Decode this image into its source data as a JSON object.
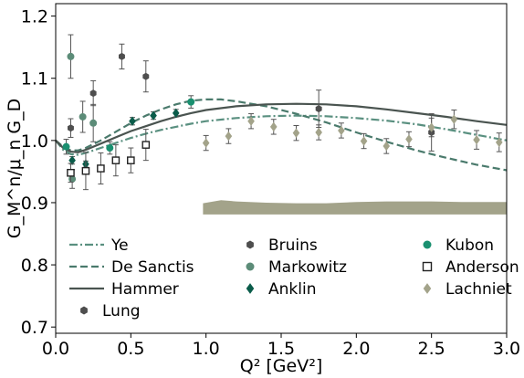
{
  "chart_data": {
    "type": "scatter",
    "title": "",
    "xlabel": "Q² [GeV²]",
    "ylabel": "G_M^n/μ_n G_D",
    "xlim": [
      0.0,
      3.0
    ],
    "ylim": [
      0.69,
      1.22
    ],
    "x_ticks": [
      "0.0",
      "0.5",
      "1.0",
      "1.5",
      "2.0",
      "2.5",
      "3.0"
    ],
    "y_ticks": [
      "0.7",
      "0.8",
      "0.9",
      "1.0",
      "1.1",
      "1.2"
    ],
    "grid": false,
    "legend_placement": "lower-left",
    "curves": [
      {
        "name": "Ye",
        "style": "dashdot",
        "color": "#5a9080",
        "points": [
          [
            0,
            1.0
          ],
          [
            0.05,
            0.985
          ],
          [
            0.1,
            0.978
          ],
          [
            0.15,
            0.977
          ],
          [
            0.2,
            0.98
          ],
          [
            0.3,
            0.988
          ],
          [
            0.4,
            0.996
          ],
          [
            0.5,
            1.004
          ],
          [
            0.6,
            1.011
          ],
          [
            0.7,
            1.017
          ],
          [
            0.8,
            1.022
          ],
          [
            0.9,
            1.027
          ],
          [
            1.0,
            1.031
          ],
          [
            1.2,
            1.036
          ],
          [
            1.4,
            1.039
          ],
          [
            1.6,
            1.04
          ],
          [
            1.8,
            1.039
          ],
          [
            2.0,
            1.036
          ],
          [
            2.2,
            1.032
          ],
          [
            2.4,
            1.026
          ],
          [
            2.6,
            1.018
          ],
          [
            2.8,
            1.009
          ],
          [
            3.0,
            1.0
          ]
        ]
      },
      {
        "name": "De Sanctis",
        "style": "dashed",
        "color": "#4a7a6c",
        "points": [
          [
            0,
            1.0
          ],
          [
            0.05,
            0.99
          ],
          [
            0.1,
            0.984
          ],
          [
            0.15,
            0.984
          ],
          [
            0.2,
            0.988
          ],
          [
            0.3,
            1.0
          ],
          [
            0.4,
            1.014
          ],
          [
            0.5,
            1.028
          ],
          [
            0.6,
            1.04
          ],
          [
            0.7,
            1.05
          ],
          [
            0.8,
            1.058
          ],
          [
            0.9,
            1.064
          ],
          [
            1.0,
            1.066
          ],
          [
            1.1,
            1.066
          ],
          [
            1.2,
            1.063
          ],
          [
            1.4,
            1.055
          ],
          [
            1.6,
            1.043
          ],
          [
            1.8,
            1.029
          ],
          [
            2.0,
            1.013
          ],
          [
            2.2,
            0.998
          ],
          [
            2.4,
            0.984
          ],
          [
            2.6,
            0.972
          ],
          [
            2.8,
            0.961
          ],
          [
            3.0,
            0.952
          ]
        ]
      },
      {
        "name": "Hammer",
        "style": "solid",
        "color": "#4a5450",
        "points": [
          [
            0,
            1.0
          ],
          [
            0.05,
            0.988
          ],
          [
            0.1,
            0.982
          ],
          [
            0.15,
            0.981
          ],
          [
            0.2,
            0.985
          ],
          [
            0.3,
            0.995
          ],
          [
            0.4,
            1.005
          ],
          [
            0.5,
            1.015
          ],
          [
            0.6,
            1.023
          ],
          [
            0.7,
            1.031
          ],
          [
            0.8,
            1.038
          ],
          [
            0.9,
            1.044
          ],
          [
            1.0,
            1.049
          ],
          [
            1.2,
            1.055
          ],
          [
            1.4,
            1.058
          ],
          [
            1.6,
            1.059
          ],
          [
            1.8,
            1.058
          ],
          [
            2.0,
            1.055
          ],
          [
            2.2,
            1.05
          ],
          [
            2.4,
            1.044
          ],
          [
            2.6,
            1.038
          ],
          [
            2.8,
            1.031
          ],
          [
            3.0,
            1.025
          ]
        ]
      }
    ],
    "band": {
      "color": "#a3a38a",
      "upper": [
        [
          0.98,
          0.899
        ],
        [
          1.1,
          0.904
        ],
        [
          1.2,
          0.902
        ],
        [
          1.4,
          0.9
        ],
        [
          1.6,
          0.899
        ],
        [
          1.8,
          0.899
        ],
        [
          2.0,
          0.901
        ],
        [
          2.2,
          0.902
        ],
        [
          2.5,
          0.902
        ],
        [
          2.7,
          0.901
        ],
        [
          3.0,
          0.901
        ]
      ],
      "lower": [
        [
          0.98,
          0.881
        ],
        [
          3.0,
          0.881
        ]
      ]
    },
    "series": [
      {
        "name": "Lung",
        "marker": "hexagon",
        "color": "#4e4e4e",
        "points": [
          [
            0.1,
            1.02,
            0.015
          ],
          [
            0.25,
            1.076,
            0.02
          ],
          [
            0.44,
            1.135,
            0.02
          ],
          [
            0.6,
            1.103,
            0.025
          ],
          [
            1.75,
            1.051,
            0.03
          ],
          [
            2.5,
            1.013,
            0.03
          ]
        ]
      },
      {
        "name": "Bruins",
        "marker": "hexagon",
        "color": "#4e4e4e",
        "points": []
      },
      {
        "name": "Markowitz",
        "marker": "circle",
        "color": "#5c8c78",
        "points": [
          [
            0.1,
            1.135,
            0.035
          ],
          [
            0.18,
            1.038,
            0.025
          ],
          [
            0.25,
            1.028,
            0.03
          ],
          [
            0.11,
            0.938,
            0.015
          ]
        ]
      },
      {
        "name": "Anklin",
        "marker": "diamond",
        "color": "#0a5c4a",
        "points": [
          [
            0.11,
            0.968,
            0.006
          ],
          [
            0.2,
            0.962,
            0.005
          ],
          [
            0.51,
            1.031,
            0.006
          ],
          [
            0.65,
            1.04,
            0.006
          ],
          [
            0.8,
            1.044,
            0.006
          ]
        ]
      },
      {
        "name": "Kubon",
        "marker": "circle",
        "color": "#1a9070",
        "points": [
          [
            0.07,
            0.99,
            0.012
          ],
          [
            0.36,
            0.988,
            0.01
          ],
          [
            0.9,
            1.062,
            0.01
          ]
        ]
      },
      {
        "name": "Anderson",
        "marker": "square",
        "color": "#222222",
        "points": [
          [
            0.1,
            0.948,
            0.015
          ],
          [
            0.2,
            0.951,
            0.03
          ],
          [
            0.3,
            0.955,
            0.025
          ],
          [
            0.4,
            0.968,
            0.025
          ],
          [
            0.5,
            0.968,
            0.02
          ],
          [
            0.6,
            0.993,
            0.025
          ]
        ]
      },
      {
        "name": "Lachniet",
        "marker": "diamond",
        "color": "#a3a38a",
        "points": [
          [
            1.0,
            0.996,
            0.012
          ],
          [
            1.15,
            1.007,
            0.012
          ],
          [
            1.3,
            1.031,
            0.012
          ],
          [
            1.45,
            1.022,
            0.012
          ],
          [
            1.6,
            1.012,
            0.012
          ],
          [
            1.75,
            1.013,
            0.012
          ],
          [
            1.9,
            1.016,
            0.012
          ],
          [
            2.05,
            0.999,
            0.012
          ],
          [
            2.2,
            0.991,
            0.012
          ],
          [
            2.35,
            1.002,
            0.012
          ],
          [
            2.5,
            1.021,
            0.015
          ],
          [
            2.65,
            1.034,
            0.015
          ],
          [
            2.8,
            1.001,
            0.015
          ],
          [
            2.95,
            0.997,
            0.015
          ]
        ]
      }
    ],
    "legend": [
      {
        "label": "Ye",
        "kind": "line",
        "ref": "Ye"
      },
      {
        "label": "Bruins",
        "kind": "marker",
        "ref": "Bruins"
      },
      {
        "label": "Kubon",
        "kind": "marker",
        "ref": "Kubon"
      },
      {
        "label": "De Sanctis",
        "kind": "line",
        "ref": "De Sanctis"
      },
      {
        "label": "Markowitz",
        "kind": "marker",
        "ref": "Markowitz"
      },
      {
        "label": "Anderson",
        "kind": "marker",
        "ref": "Anderson"
      },
      {
        "label": "Hammer",
        "kind": "line",
        "ref": "Hammer"
      },
      {
        "label": "Anklin",
        "kind": "marker",
        "ref": "Anklin"
      },
      {
        "label": "Lachniet",
        "kind": "marker",
        "ref": "Lachniet"
      },
      {
        "label": "Lung",
        "kind": "marker",
        "ref": "Lung"
      }
    ]
  }
}
